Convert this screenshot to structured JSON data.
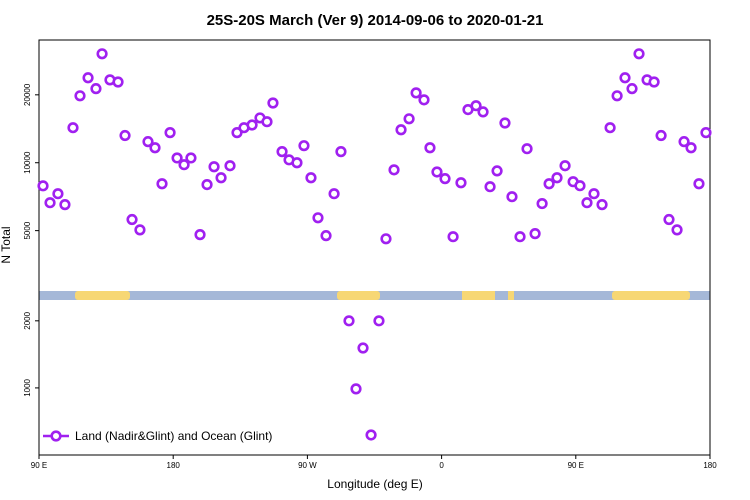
{
  "chart_data": [
    {
      "type": "scatter",
      "title": "25S-20S March (Ver 9)   2014-09-06 to 2020-01-21",
      "ylabel": "N Total",
      "log_y": true,
      "xlim": [
        90,
        540
      ],
      "ylim": [
        2700,
        35000
      ],
      "yticks": [
        5000,
        10000,
        20000
      ],
      "x": [
        92.7,
        97.4,
        102.7,
        107.4,
        112.8,
        117.5,
        122.9,
        128.2,
        132.3,
        137.6,
        143,
        147.7,
        152.4,
        157.7,
        163.1,
        167.8,
        172.5,
        177.9,
        182.6,
        187.3,
        191.9,
        198,
        202.7,
        207.4,
        212.1,
        218.1,
        222.8,
        227.5,
        232.9,
        238.2,
        242.9,
        246.9,
        253,
        257.7,
        263,
        267.7,
        272.4,
        277.1,
        282.5,
        287.9,
        292.5,
        322.7,
        328.1,
        332.8,
        338.2,
        342.9,
        348.2,
        352.2,
        356.9,
        362.3,
        367.7,
        373,
        377.7,
        383.1,
        387.8,
        392.5,
        397.2,
        402.5,
        407.2,
        412.6,
        417.3,
        422.7,
        427.4,
        432.1,
        437.4,
        442.8,
        448.2,
        452.8,
        457.5,
        462.2,
        467.6,
        473,
        477.7,
        483,
        487.7,
        492.4,
        497.8,
        502.5,
        507.2,
        512.5,
        517.9,
        522.6,
        527.3,
        532.6,
        537.3
      ],
      "series": [
        {
          "color": "#a020f0",
          "values": [
            7900,
            6650,
            7290,
            6520,
            14300,
            19800,
            23800,
            21300,
            30400,
            23300,
            22800,
            13200,
            5600,
            5040,
            12400,
            11650,
            8070,
            13600,
            10500,
            9800,
            10500,
            4800,
            8000,
            9600,
            8580,
            9700,
            13600,
            14300,
            14700,
            15800,
            15200,
            18400,
            11200,
            10300,
            10000,
            11900,
            8580,
            5700,
            4750,
            7290,
            11200,
            4600,
            9300,
            14000,
            15660,
            20400,
            19000,
            11650,
            9100,
            8500,
            4700,
            8150,
            17200,
            17900,
            16800,
            7830,
            9200,
            15000,
            7070,
            4700,
            11540,
            4850,
            6590,
            8070,
            8580,
            9700,
            8240,
            7910,
            6650,
            7290,
            6520,
            14300,
            19800,
            23800,
            21300,
            30400,
            23300,
            22800,
            13200,
            5600,
            5040,
            12400,
            11650,
            8070,
            13600
          ]
        }
      ]
    },
    {
      "type": "scatter",
      "xlabel": "Longitude (deg E)",
      "log_y": true,
      "xlim": [
        90,
        540
      ],
      "ylim": [
        500,
        2480
      ],
      "xticks": [
        {
          "value": 90,
          "label": "90 E"
        },
        180,
        {
          "value": 270,
          "label": "90 W"
        },
        {
          "value": 360,
          "label": "0"
        },
        {
          "value": 450,
          "label": "90 E"
        },
        {
          "value": 540,
          "label": "180"
        }
      ],
      "yticks": [
        1000,
        2000
      ],
      "legend": "lower left",
      "x": [
        297.9,
        302.6,
        307.3,
        312.7,
        318
      ],
      "series": [
        {
          "name": "Land (Nadir&Glint) and Ocean (Glint)",
          "color": "#a020f0",
          "values": [
            2000,
            990,
            1510,
            615,
            2000
          ]
        }
      ]
    }
  ]
}
